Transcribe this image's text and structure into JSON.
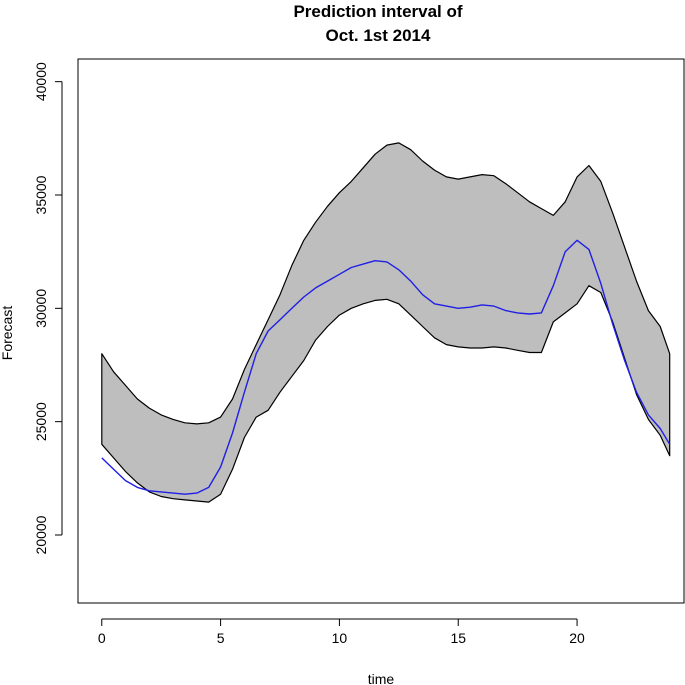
{
  "chart_data": {
    "type": "line",
    "title_lines": [
      "Prediction interval of",
      "Oct. 1st 2014"
    ],
    "xlabel": "time",
    "ylabel": "Forecast",
    "xlim": [
      -1,
      24.5
    ],
    "ylim": [
      17000,
      41000
    ],
    "x_ticks": [
      0,
      5,
      10,
      15,
      20
    ],
    "x_tick_labels": [
      "0",
      "5",
      "10",
      "15",
      "20"
    ],
    "y_ticks": [
      20000,
      25000,
      30000,
      35000,
      40000
    ],
    "y_tick_labels": [
      "20000",
      "25000",
      "30000",
      "35000",
      "40000"
    ],
    "grid": false,
    "colors": {
      "band_fill": "#bebebe",
      "band_edge": "#000000",
      "forecast_line": "#1f1fe6"
    },
    "x": [
      0,
      0.5,
      1,
      1.5,
      2,
      2.5,
      3,
      3.5,
      4,
      4.5,
      5,
      5.5,
      6,
      6.5,
      7,
      7.5,
      8,
      8.5,
      9,
      9.5,
      10,
      10.5,
      11,
      11.5,
      12,
      12.5,
      13,
      13.5,
      14,
      14.5,
      15,
      15.5,
      16,
      16.5,
      17,
      17.5,
      18,
      18.5,
      19,
      19.5,
      20,
      20.5,
      21,
      21.5,
      22,
      22.5,
      23,
      23.5,
      23.9
    ],
    "series": [
      {
        "role": "upper",
        "values": [
          28000,
          27200,
          26600,
          26000,
          25600,
          25300,
          25100,
          24950,
          24900,
          24950,
          25200,
          26000,
          27300,
          28400,
          29500,
          30600,
          31900,
          33000,
          33800,
          34500,
          35100,
          35600,
          36200,
          36800,
          37200,
          37300,
          37000,
          36500,
          36100,
          35800,
          35700,
          35800,
          35900,
          35850,
          35500,
          35100,
          34700,
          34400,
          34100,
          34700,
          35800,
          36300,
          35600,
          34200,
          32700,
          31200,
          29900,
          29200,
          28000
        ]
      },
      {
        "role": "forecast",
        "values": [
          23400,
          22900,
          22400,
          22100,
          21950,
          21900,
          21850,
          21800,
          21850,
          22100,
          23000,
          24500,
          26300,
          28000,
          29000,
          29500,
          30000,
          30500,
          30900,
          31200,
          31500,
          31800,
          31950,
          32100,
          32050,
          31700,
          31200,
          30600,
          30200,
          30100,
          30000,
          30050,
          30150,
          30100,
          29900,
          29800,
          29750,
          29800,
          31000,
          32500,
          33000,
          32600,
          31100,
          29300,
          27700,
          26300,
          25300,
          24700,
          24000
        ]
      },
      {
        "role": "lower",
        "values": [
          24000,
          23400,
          22800,
          22300,
          21900,
          21700,
          21600,
          21550,
          21500,
          21450,
          21800,
          22900,
          24300,
          25200,
          25500,
          26300,
          27000,
          27700,
          28600,
          29200,
          29700,
          30000,
          30200,
          30350,
          30400,
          30200,
          29700,
          29200,
          28700,
          28400,
          28300,
          28250,
          28250,
          28300,
          28250,
          28150,
          28050,
          28050,
          29400,
          29800,
          30200,
          31000,
          30700,
          29400,
          27800,
          26200,
          25100,
          24400,
          23500
        ]
      }
    ]
  }
}
